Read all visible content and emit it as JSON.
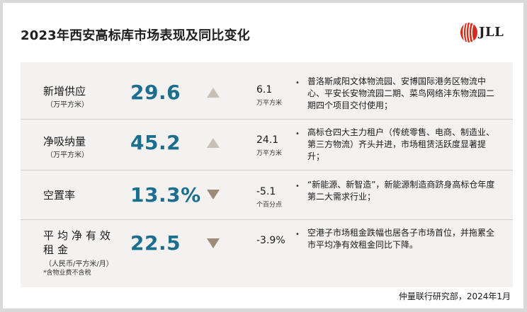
{
  "header": {
    "title": "2023年西安高标库市场表现及同比变化",
    "logo_text": "JLL"
  },
  "metrics": [
    {
      "label": "新增供应",
      "unit": "（万平方米）",
      "value": "29.6",
      "trend": "up",
      "change": "6.1",
      "change_unit": "万平方米",
      "description": "普洛斯咸阳文体物流园、安博国际港务区物流中心、平安长安物流园二期、菜鸟网络沣东物流园二期四个项目交付使用；"
    },
    {
      "label": "净吸纳量",
      "unit": "（万平方米）",
      "value": "45.2",
      "trend": "up",
      "change": "24.1",
      "change_unit": "万平方米",
      "description": "高标仓四大主力租户（传统零售、电商、制造业、第三方物流）齐头并进，市场租赁活跃度显著提升；"
    },
    {
      "label": "空置率",
      "unit": "",
      "value": "13.3%",
      "trend": "down",
      "change": "-5.1",
      "change_unit": "个百分点",
      "description": "“新能源、新智造”，新能源制造商跻身高标仓年度第二大需求行业；"
    },
    {
      "label": "平均净有效租金",
      "unit": "（人民币/平方米/月）",
      "note": "*含物业费不含税",
      "value": "22.5",
      "trend": "down",
      "change": "-3.9%",
      "change_unit": "",
      "description": "空港子市场租金跌幅也居各子市场首位，并拖累全市平均净有效租金同比下降。"
    }
  ],
  "bullet_char": "•",
  "footer": "仲量联行研究部，2024年1月",
  "colors": {
    "value": "#1c6e8e",
    "arrow": "#c9bfb4",
    "brand_red": "#d52b1e",
    "panel_bg": "#f3f2f1"
  }
}
